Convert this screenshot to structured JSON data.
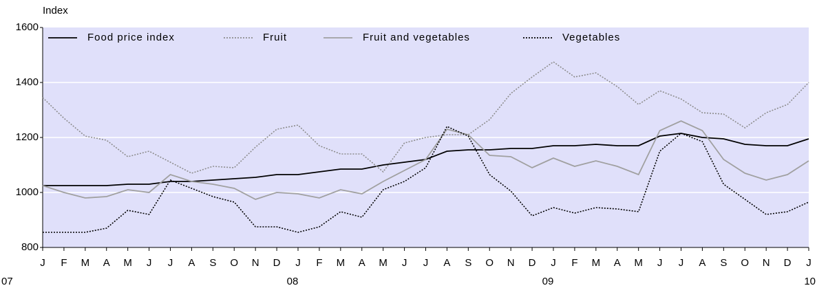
{
  "chart_data": {
    "type": "line",
    "y_label": "Index",
    "categories": [
      "J",
      "F",
      "M",
      "A",
      "M",
      "J",
      "J",
      "A",
      "S",
      "O",
      "N",
      "D",
      "J",
      "F",
      "M",
      "A",
      "M",
      "J",
      "J",
      "A",
      "S",
      "O",
      "N",
      "D",
      "J",
      "F",
      "M",
      "A",
      "M",
      "J",
      "J",
      "A",
      "S",
      "O",
      "N",
      "D",
      "J"
    ],
    "year_labels": [
      "07",
      null,
      null,
      null,
      null,
      null,
      null,
      null,
      null,
      null,
      null,
      null,
      "08",
      null,
      null,
      null,
      null,
      null,
      null,
      null,
      null,
      null,
      null,
      null,
      "09",
      null,
      null,
      null,
      null,
      null,
      null,
      null,
      null,
      null,
      null,
      null,
      "10"
    ],
    "ylim": [
      800,
      1600
    ],
    "yticks": [
      800,
      1000,
      1200,
      1400,
      1600
    ],
    "grid": true,
    "background": "#e0e0fa",
    "series": [
      {
        "name": "Food price index",
        "color": "#000000",
        "style": "solid",
        "values": [
          1025,
          1025,
          1025,
          1025,
          1030,
          1030,
          1040,
          1040,
          1045,
          1050,
          1055,
          1065,
          1065,
          1075,
          1085,
          1085,
          1100,
          1110,
          1120,
          1150,
          1155,
          1155,
          1160,
          1160,
          1170,
          1170,
          1175,
          1170,
          1170,
          1205,
          1215,
          1200,
          1195,
          1175,
          1170,
          1170,
          1195
        ]
      },
      {
        "name": "Fruit",
        "color": "#8c8c8c",
        "style": "dotted",
        "values": [
          1345,
          1270,
          1205,
          1190,
          1130,
          1150,
          1110,
          1070,
          1095,
          1090,
          1165,
          1230,
          1245,
          1170,
          1140,
          1140,
          1075,
          1180,
          1200,
          1210,
          1210,
          1265,
          1360,
          1420,
          1475,
          1420,
          1435,
          1385,
          1320,
          1370,
          1340,
          1290,
          1285,
          1235,
          1290,
          1320,
          1400
        ]
      },
      {
        "name": "Fruit and vegetables",
        "color": "#a0a0a0",
        "style": "solid",
        "values": [
          1025,
          1000,
          980,
          985,
          1010,
          1000,
          1065,
          1040,
          1030,
          1015,
          975,
          1000,
          995,
          980,
          1010,
          995,
          1040,
          1080,
          1120,
          1230,
          1210,
          1135,
          1130,
          1090,
          1125,
          1095,
          1115,
          1095,
          1065,
          1225,
          1260,
          1225,
          1120,
          1070,
          1045,
          1065,
          1115
        ]
      },
      {
        "name": "Vegetables",
        "color": "#000000",
        "style": "dotted",
        "values": [
          855,
          855,
          855,
          870,
          935,
          920,
          1045,
          1015,
          985,
          965,
          875,
          875,
          855,
          875,
          930,
          910,
          1010,
          1040,
          1090,
          1240,
          1205,
          1065,
          1005,
          915,
          945,
          925,
          945,
          940,
          930,
          1150,
          1215,
          1185,
          1030,
          975,
          920,
          930,
          965
        ]
      }
    ]
  }
}
